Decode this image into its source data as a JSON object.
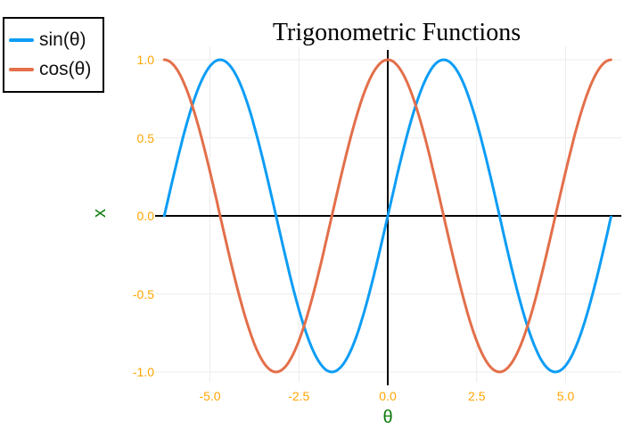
{
  "chart_data": {
    "type": "line",
    "title": "Trigonometric Functions",
    "xlabel": "θ",
    "ylabel": "x",
    "x_domain": [
      -6.2832,
      6.2832
    ],
    "xlim": [
      -6.55,
      6.58
    ],
    "ylim": [
      -1.08,
      1.09
    ],
    "x_ticks": [
      -5.0,
      -2.5,
      0.0,
      2.5,
      5.0
    ],
    "x_tick_labels": [
      "-5.0",
      "-2.5",
      "0.0",
      "2.5",
      "5.0"
    ],
    "y_ticks": [
      -1.0,
      -0.5,
      0.0,
      0.5,
      1.0
    ],
    "y_tick_labels": [
      "-1.0",
      "-0.5",
      "0.0",
      "0.5",
      "1.0"
    ],
    "grid": true,
    "legend": {
      "position": "outside-top-left",
      "entries": [
        "sin(θ)",
        "cos(θ)"
      ]
    },
    "series": [
      {
        "name": "sin(θ)",
        "fn": "sin",
        "amplitude": 1,
        "color": "#0D9DF5"
      },
      {
        "name": "cos(θ)",
        "fn": "cos",
        "amplitude": 1,
        "color": "#E36F4A"
      }
    ],
    "colors": {
      "tick_labels": "#FFA500",
      "axis_labels": "#0B7C0B",
      "grid": "#ECECEC",
      "zero_lines": "#000000",
      "title": "#000000",
      "background": "#FFFFFF"
    }
  }
}
